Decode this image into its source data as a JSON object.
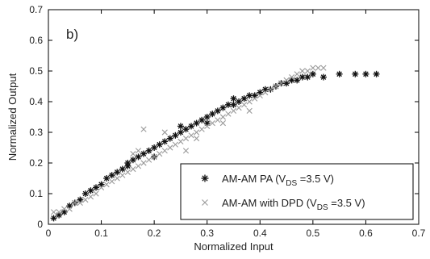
{
  "chart_data": {
    "type": "scatter",
    "panel_label": "b)",
    "xlabel": "Normalized Input",
    "ylabel": "Normalized Output",
    "xlim": [
      0,
      0.7
    ],
    "ylim": [
      0,
      0.7
    ],
    "xticks": [
      "0",
      "0.1",
      "0.2",
      "0.3",
      "0.4",
      "0.5",
      "0.6",
      "0.7"
    ],
    "yticks": [
      "0",
      "0.1",
      "0.2",
      "0.3",
      "0.4",
      "0.5",
      "0.6",
      "0.7"
    ],
    "grid": false,
    "legend_position": "bottom-right",
    "series": [
      {
        "name_main": "AM-AM PA (V",
        "name_sub": "DS",
        "name_tail": " =3.5 V)",
        "marker": "asterisk",
        "color": "#111111",
        "points": [
          [
            0.01,
            0.02
          ],
          [
            0.02,
            0.03
          ],
          [
            0.03,
            0.04
          ],
          [
            0.04,
            0.06
          ],
          [
            0.05,
            0.07
          ],
          [
            0.06,
            0.08
          ],
          [
            0.07,
            0.1
          ],
          [
            0.08,
            0.11
          ],
          [
            0.09,
            0.12
          ],
          [
            0.1,
            0.13
          ],
          [
            0.11,
            0.15
          ],
          [
            0.12,
            0.16
          ],
          [
            0.13,
            0.17
          ],
          [
            0.14,
            0.18
          ],
          [
            0.15,
            0.19
          ],
          [
            0.16,
            0.21
          ],
          [
            0.17,
            0.22
          ],
          [
            0.18,
            0.23
          ],
          [
            0.19,
            0.24
          ],
          [
            0.2,
            0.25
          ],
          [
            0.21,
            0.26
          ],
          [
            0.22,
            0.27
          ],
          [
            0.23,
            0.28
          ],
          [
            0.24,
            0.29
          ],
          [
            0.25,
            0.3
          ],
          [
            0.26,
            0.31
          ],
          [
            0.27,
            0.32
          ],
          [
            0.28,
            0.33
          ],
          [
            0.29,
            0.34
          ],
          [
            0.3,
            0.35
          ],
          [
            0.31,
            0.36
          ],
          [
            0.32,
            0.37
          ],
          [
            0.33,
            0.38
          ],
          [
            0.34,
            0.39
          ],
          [
            0.35,
            0.39
          ],
          [
            0.36,
            0.4
          ],
          [
            0.37,
            0.41
          ],
          [
            0.38,
            0.42
          ],
          [
            0.39,
            0.42
          ],
          [
            0.4,
            0.43
          ],
          [
            0.41,
            0.44
          ],
          [
            0.42,
            0.44
          ],
          [
            0.43,
            0.45
          ],
          [
            0.44,
            0.46
          ],
          [
            0.45,
            0.46
          ],
          [
            0.46,
            0.47
          ],
          [
            0.47,
            0.47
          ],
          [
            0.48,
            0.48
          ],
          [
            0.49,
            0.48
          ],
          [
            0.5,
            0.49
          ],
          [
            0.52,
            0.48
          ],
          [
            0.55,
            0.49
          ],
          [
            0.58,
            0.49
          ],
          [
            0.6,
            0.49
          ],
          [
            0.62,
            0.49
          ],
          [
            0.15,
            0.2
          ],
          [
            0.2,
            0.22
          ],
          [
            0.25,
            0.32
          ],
          [
            0.3,
            0.33
          ],
          [
            0.35,
            0.41
          ]
        ]
      },
      {
        "name_main": "AM-AM with DPD (V",
        "name_sub": "DS",
        "name_tail": " =3.5 V)",
        "marker": "x",
        "color": "#9a9a9a",
        "points": [
          [
            0.01,
            0.04
          ],
          [
            0.02,
            0.04
          ],
          [
            0.03,
            0.05
          ],
          [
            0.04,
            0.05
          ],
          [
            0.05,
            0.07
          ],
          [
            0.06,
            0.07
          ],
          [
            0.07,
            0.08
          ],
          [
            0.08,
            0.09
          ],
          [
            0.09,
            0.1
          ],
          [
            0.1,
            0.12
          ],
          [
            0.11,
            0.13
          ],
          [
            0.12,
            0.14
          ],
          [
            0.13,
            0.15
          ],
          [
            0.14,
            0.16
          ],
          [
            0.15,
            0.17
          ],
          [
            0.16,
            0.18
          ],
          [
            0.17,
            0.19
          ],
          [
            0.18,
            0.2
          ],
          [
            0.19,
            0.21
          ],
          [
            0.2,
            0.22
          ],
          [
            0.21,
            0.23
          ],
          [
            0.22,
            0.24
          ],
          [
            0.23,
            0.25
          ],
          [
            0.24,
            0.26
          ],
          [
            0.25,
            0.27
          ],
          [
            0.26,
            0.28
          ],
          [
            0.27,
            0.29
          ],
          [
            0.28,
            0.3
          ],
          [
            0.29,
            0.31
          ],
          [
            0.3,
            0.32
          ],
          [
            0.31,
            0.33
          ],
          [
            0.32,
            0.34
          ],
          [
            0.33,
            0.35
          ],
          [
            0.34,
            0.36
          ],
          [
            0.35,
            0.37
          ],
          [
            0.36,
            0.38
          ],
          [
            0.37,
            0.39
          ],
          [
            0.38,
            0.4
          ],
          [
            0.39,
            0.41
          ],
          [
            0.4,
            0.42
          ],
          [
            0.41,
            0.43
          ],
          [
            0.42,
            0.44
          ],
          [
            0.43,
            0.45
          ],
          [
            0.44,
            0.46
          ],
          [
            0.45,
            0.47
          ],
          [
            0.46,
            0.48
          ],
          [
            0.47,
            0.49
          ],
          [
            0.48,
            0.5
          ],
          [
            0.49,
            0.5
          ],
          [
            0.5,
            0.51
          ],
          [
            0.51,
            0.51
          ],
          [
            0.52,
            0.51
          ],
          [
            0.18,
            0.31
          ],
          [
            0.16,
            0.23
          ],
          [
            0.17,
            0.24
          ],
          [
            0.22,
            0.3
          ],
          [
            0.28,
            0.28
          ],
          [
            0.33,
            0.33
          ],
          [
            0.38,
            0.37
          ],
          [
            0.26,
            0.24
          ]
        ]
      }
    ]
  }
}
